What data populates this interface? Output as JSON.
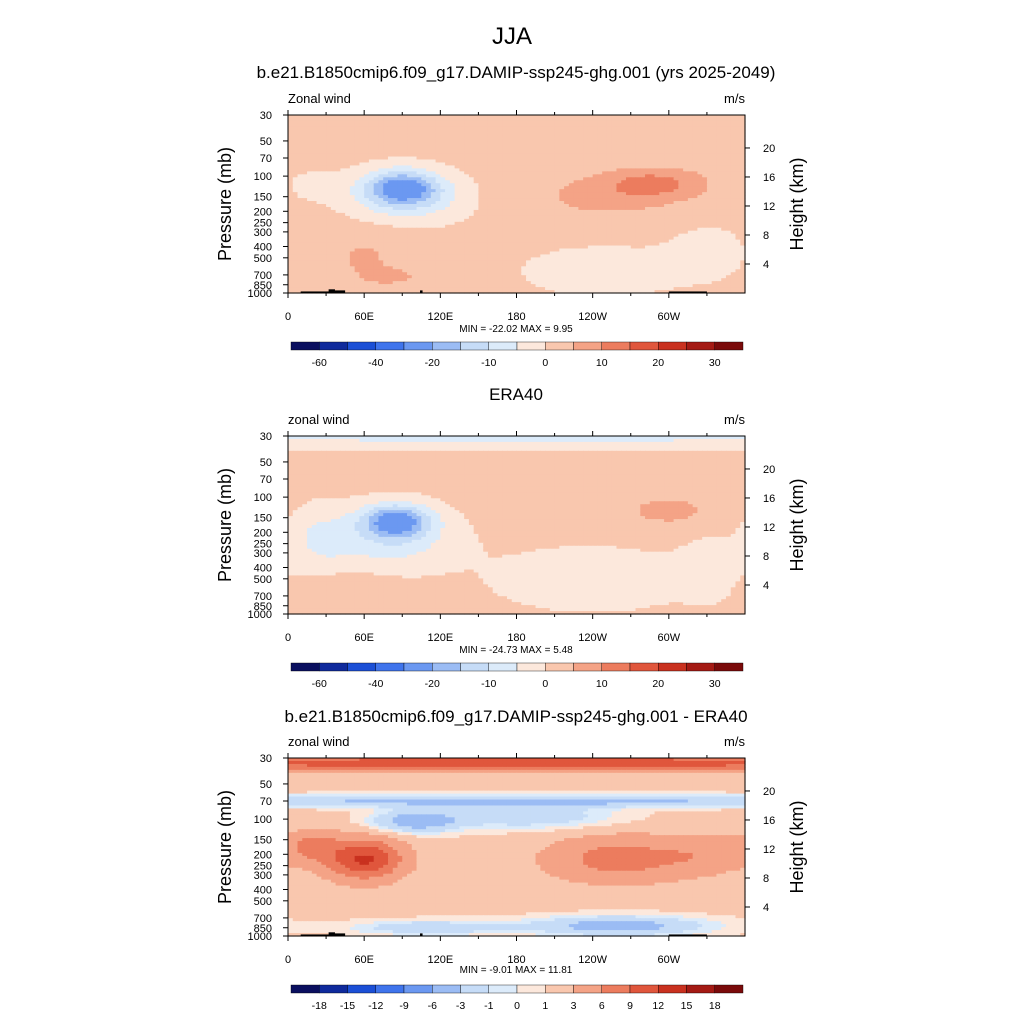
{
  "figure": {
    "season_title": "JJA"
  },
  "colors": {
    "cbar_main": [
      "#0a0f5f",
      "#0f2a9c",
      "#1b4fd6",
      "#3f74ec",
      "#6b98f1",
      "#9bbcf4",
      "#c6dcf7",
      "#dcebfa",
      "#fce8dc",
      "#f9c7ae",
      "#f4a386",
      "#ec7c5e",
      "#e0563c",
      "#c9311f",
      "#a41a14",
      "#7a0a0a"
    ],
    "cbar_diff": [
      "#0a0f5f",
      "#0f2a9c",
      "#1b4fd6",
      "#3f74ec",
      "#6b98f1",
      "#9bbcf4",
      "#c6dcf7",
      "#dcebfa",
      "#fce8dc",
      "#f9c7ae",
      "#f4a386",
      "#ec7c5e",
      "#e0563c",
      "#c9311f",
      "#a41a14",
      "#7a0a0a"
    ]
  },
  "chart_data": [
    {
      "type": "heatmap",
      "title": "b.e21.B1850cmip6.f09_g17.DAMIP-ssp245-ghg.001 (yrs 2025-2049)",
      "left_label": "Zonal wind",
      "right_label": "m/s",
      "xlabel": "",
      "ylabel": "Pressure (mb)",
      "ylabel_right": "Height (km)",
      "x_ticks": [
        "0",
        "60E",
        "120E",
        "180",
        "120W",
        "60W"
      ],
      "x_range_deg": [
        0,
        360
      ],
      "y_ticks": [
        "30",
        "50",
        "70",
        "100",
        "150",
        "200",
        "250",
        "300",
        "400",
        "500",
        "700",
        "850",
        "1000"
      ],
      "y_ticks_right": [
        "20",
        "16",
        "12",
        "8",
        "4"
      ],
      "y_scale": "log",
      "ylim": [
        1000,
        30
      ],
      "stats": "MIN = -22.02  MAX =   9.95",
      "colorbar_labels": [
        "-60",
        "-40",
        "-20",
        "-10",
        "0",
        "10",
        "20",
        "30"
      ],
      "features": [
        {
          "lon": 90,
          "p": 120,
          "value": -20
        },
        {
          "lon": 90,
          "p": 130,
          "value": -10
        },
        {
          "lon": 90,
          "p": 140,
          "value": -5
        },
        {
          "lon": 290,
          "p": 115,
          "value": 7
        },
        {
          "lon": 260,
          "p": 150,
          "value": 3
        },
        {
          "lon": 250,
          "p": 700,
          "value": -3
        },
        {
          "lon": 60,
          "p": 600,
          "value": 2
        },
        {
          "lon": 80,
          "p": 720,
          "value": 5
        }
      ],
      "has_topography": true
    },
    {
      "type": "heatmap",
      "title": "ERA40",
      "left_label": "zonal wind",
      "right_label": "m/s",
      "xlabel": "",
      "ylabel": "Pressure (mb)",
      "ylabel_right": "Height (km)",
      "x_ticks": [
        "0",
        "60E",
        "120E",
        "180",
        "120W",
        "60W"
      ],
      "x_range_deg": [
        0,
        360
      ],
      "y_ticks": [
        "30",
        "50",
        "70",
        "100",
        "150",
        "200",
        "250",
        "300",
        "400",
        "500",
        "700",
        "850",
        "1000"
      ],
      "y_ticks_right": [
        "20",
        "16",
        "12",
        "8",
        "4"
      ],
      "y_scale": "log",
      "ylim": [
        1000,
        30
      ],
      "stats": "MIN = -24.73  MAX =   5.48",
      "colorbar_labels": [
        "-60",
        "-40",
        "-20",
        "-10",
        "0",
        "10",
        "20",
        "30"
      ],
      "features": [
        {
          "lon": 85,
          "p": 160,
          "value": -20
        },
        {
          "lon": 85,
          "p": 170,
          "value": -10
        },
        {
          "lon": 85,
          "p": 180,
          "value": -5
        },
        {
          "lon": 300,
          "p": 130,
          "value": 3
        },
        {
          "lon": 240,
          "p": 500,
          "value": -3
        },
        {
          "lon": 180,
          "p": 35,
          "value": -3
        }
      ],
      "has_topography": false
    },
    {
      "type": "heatmap",
      "title": "b.e21.B1850cmip6.f09_g17.DAMIP-ssp245-ghg.001 - ERA40",
      "left_label": "zonal wind",
      "right_label": "m/s",
      "xlabel": "",
      "ylabel": "Pressure (mb)",
      "ylabel_right": "Height (km)",
      "x_ticks": [
        "0",
        "60E",
        "120E",
        "180",
        "120W",
        "60W"
      ],
      "x_range_deg": [
        0,
        360
      ],
      "y_ticks": [
        "30",
        "50",
        "70",
        "100",
        "150",
        "200",
        "250",
        "300",
        "400",
        "500",
        "700",
        "850",
        "1000"
      ],
      "y_ticks_right": [
        "20",
        "16",
        "12",
        "8",
        "4"
      ],
      "y_scale": "log",
      "ylim": [
        1000,
        30
      ],
      "stats": "MIN = -9.01  MAX =  11.81",
      "colorbar_labels": [
        "-18",
        "-15",
        "-12",
        "-9",
        "-6",
        "-3",
        "-1",
        "0",
        "1",
        "3",
        "6",
        "9",
        "12",
        "15",
        "18"
      ],
      "features": [
        {
          "lon": 180,
          "p": 35,
          "value": 9
        },
        {
          "lon": 180,
          "p": 70,
          "value": -3
        },
        {
          "lon": 100,
          "p": 105,
          "value": -6
        },
        {
          "lon": 60,
          "p": 210,
          "value": 9
        },
        {
          "lon": 60,
          "p": 230,
          "value": 6
        },
        {
          "lon": 270,
          "p": 200,
          "value": 6
        },
        {
          "lon": 250,
          "p": 800,
          "value": -3
        }
      ],
      "has_topography": true
    }
  ]
}
